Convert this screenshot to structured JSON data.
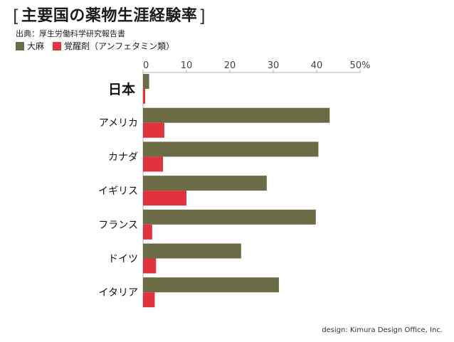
{
  "title": "主要国の薬物生涯経験率",
  "source": "出典：厚生労働科学研究報告書",
  "credit": "design: Kimura Design Office, Inc.",
  "colors": {
    "cannabis": "#6b6b45",
    "amphetamine": "#e0333d",
    "axis": "#b0b0b0"
  },
  "legend": [
    {
      "label": "大麻",
      "color": "#6b6b45"
    },
    {
      "label": "覚醒剤（アンフェタミン類）",
      "color": "#e0333d"
    }
  ],
  "chart_data": {
    "type": "bar",
    "orientation": "horizontal",
    "title": "主要国の薬物生涯経験率",
    "categories": [
      "日本",
      "アメリカ",
      "カナダ",
      "イギリス",
      "フランス",
      "ドイツ",
      "イタリア"
    ],
    "series": [
      {
        "name": "大麻",
        "values": [
          1.4,
          43.0,
          40.4,
          28.5,
          39.8,
          22.6,
          31.3
        ]
      },
      {
        "name": "覚醒剤（アンフェタミン類）",
        "values": [
          0.5,
          4.9,
          4.6,
          10.0,
          2.1,
          3.0,
          2.7
        ]
      }
    ],
    "xlim": [
      0,
      50
    ],
    "xticks": [
      0,
      10,
      20,
      30,
      40,
      50
    ],
    "tick_labels": [
      "0",
      "10",
      "20",
      "30",
      "40",
      "50%"
    ],
    "grid": false,
    "legend_position": "top-left"
  }
}
